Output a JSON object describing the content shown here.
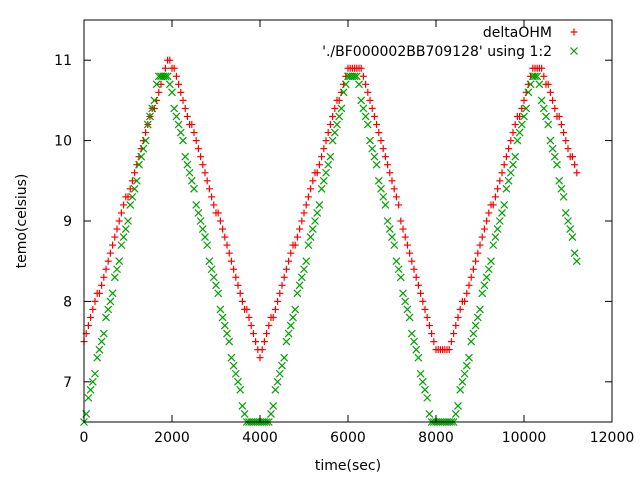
{
  "chart_data": {
    "type": "scatter",
    "title": "",
    "xlabel": "time(sec)",
    "ylabel": "temo(celsius)",
    "xlim": [
      0,
      12000
    ],
    "ylim": [
      6.5,
      11.5
    ],
    "x_ticks": [
      0,
      2000,
      4000,
      6000,
      8000,
      10000,
      12000
    ],
    "y_ticks": [
      7,
      8,
      9,
      10,
      11
    ],
    "grid": false,
    "legend_position": "top-right",
    "series": [
      {
        "name": "deltaOHM",
        "marker": "plus",
        "color": "#ff0000",
        "x": [
          0,
          1900,
          2100,
          4000,
          6000,
          6300,
          8000,
          8300,
          10200,
          10400,
          11200
        ],
        "y": [
          7.5,
          11.0,
          10.8,
          7.3,
          10.9,
          10.9,
          7.4,
          7.4,
          10.9,
          10.9,
          9.6
        ]
      },
      {
        "name": "'./BF000002BB709128' using 1:2",
        "marker": "cross",
        "color": "#00a000",
        "x": [
          0,
          1700,
          1900,
          3700,
          4200,
          6000,
          6200,
          7900,
          8400,
          10200,
          10300,
          11200
        ],
        "y": [
          6.5,
          10.8,
          10.8,
          6.5,
          6.5,
          10.8,
          10.8,
          6.5,
          6.5,
          10.8,
          10.8,
          8.5
        ]
      }
    ]
  }
}
